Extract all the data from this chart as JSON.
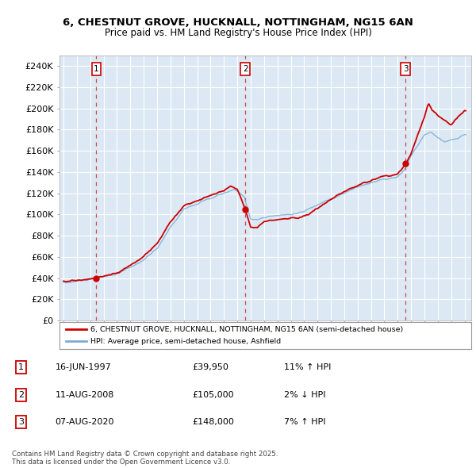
{
  "title_line1": "6, CHESTNUT GROVE, HUCKNALL, NOTTINGHAM, NG15 6AN",
  "title_line2": "Price paid vs. HM Land Registry's House Price Index (HPI)",
  "background_color": "#dce9f5",
  "grid_color": "#ffffff",
  "red_color": "#cc0000",
  "blue_color": "#7aadd4",
  "ylim": [
    0,
    250000
  ],
  "yticks": [
    0,
    20000,
    40000,
    60000,
    80000,
    100000,
    120000,
    140000,
    160000,
    180000,
    200000,
    220000,
    240000
  ],
  "ytick_labels": [
    "£0",
    "£20K",
    "£40K",
    "£60K",
    "£80K",
    "£100K",
    "£120K",
    "£140K",
    "£160K",
    "£180K",
    "£200K",
    "£220K",
    "£240K"
  ],
  "xmin": 1994.7,
  "xmax": 2025.5,
  "sale_dates": [
    1997.458,
    2008.608,
    2020.597
  ],
  "sale_prices": [
    39950,
    105000,
    148000
  ],
  "sale_labels": [
    "1",
    "2",
    "3"
  ],
  "legend_entries": [
    "6, CHESTNUT GROVE, HUCKNALL, NOTTINGHAM, NG15 6AN (semi-detached house)",
    "HPI: Average price, semi-detached house, Ashfield"
  ],
  "table_data": [
    [
      "1",
      "16-JUN-1997",
      "£39,950",
      "11% ↑ HPI"
    ],
    [
      "2",
      "11-AUG-2008",
      "£105,000",
      "2% ↓ HPI"
    ],
    [
      "3",
      "07-AUG-2020",
      "£148,000",
      "7% ↑ HPI"
    ]
  ],
  "footnote": "Contains HM Land Registry data © Crown copyright and database right 2025.\nThis data is licensed under the Open Government Licence v3.0."
}
